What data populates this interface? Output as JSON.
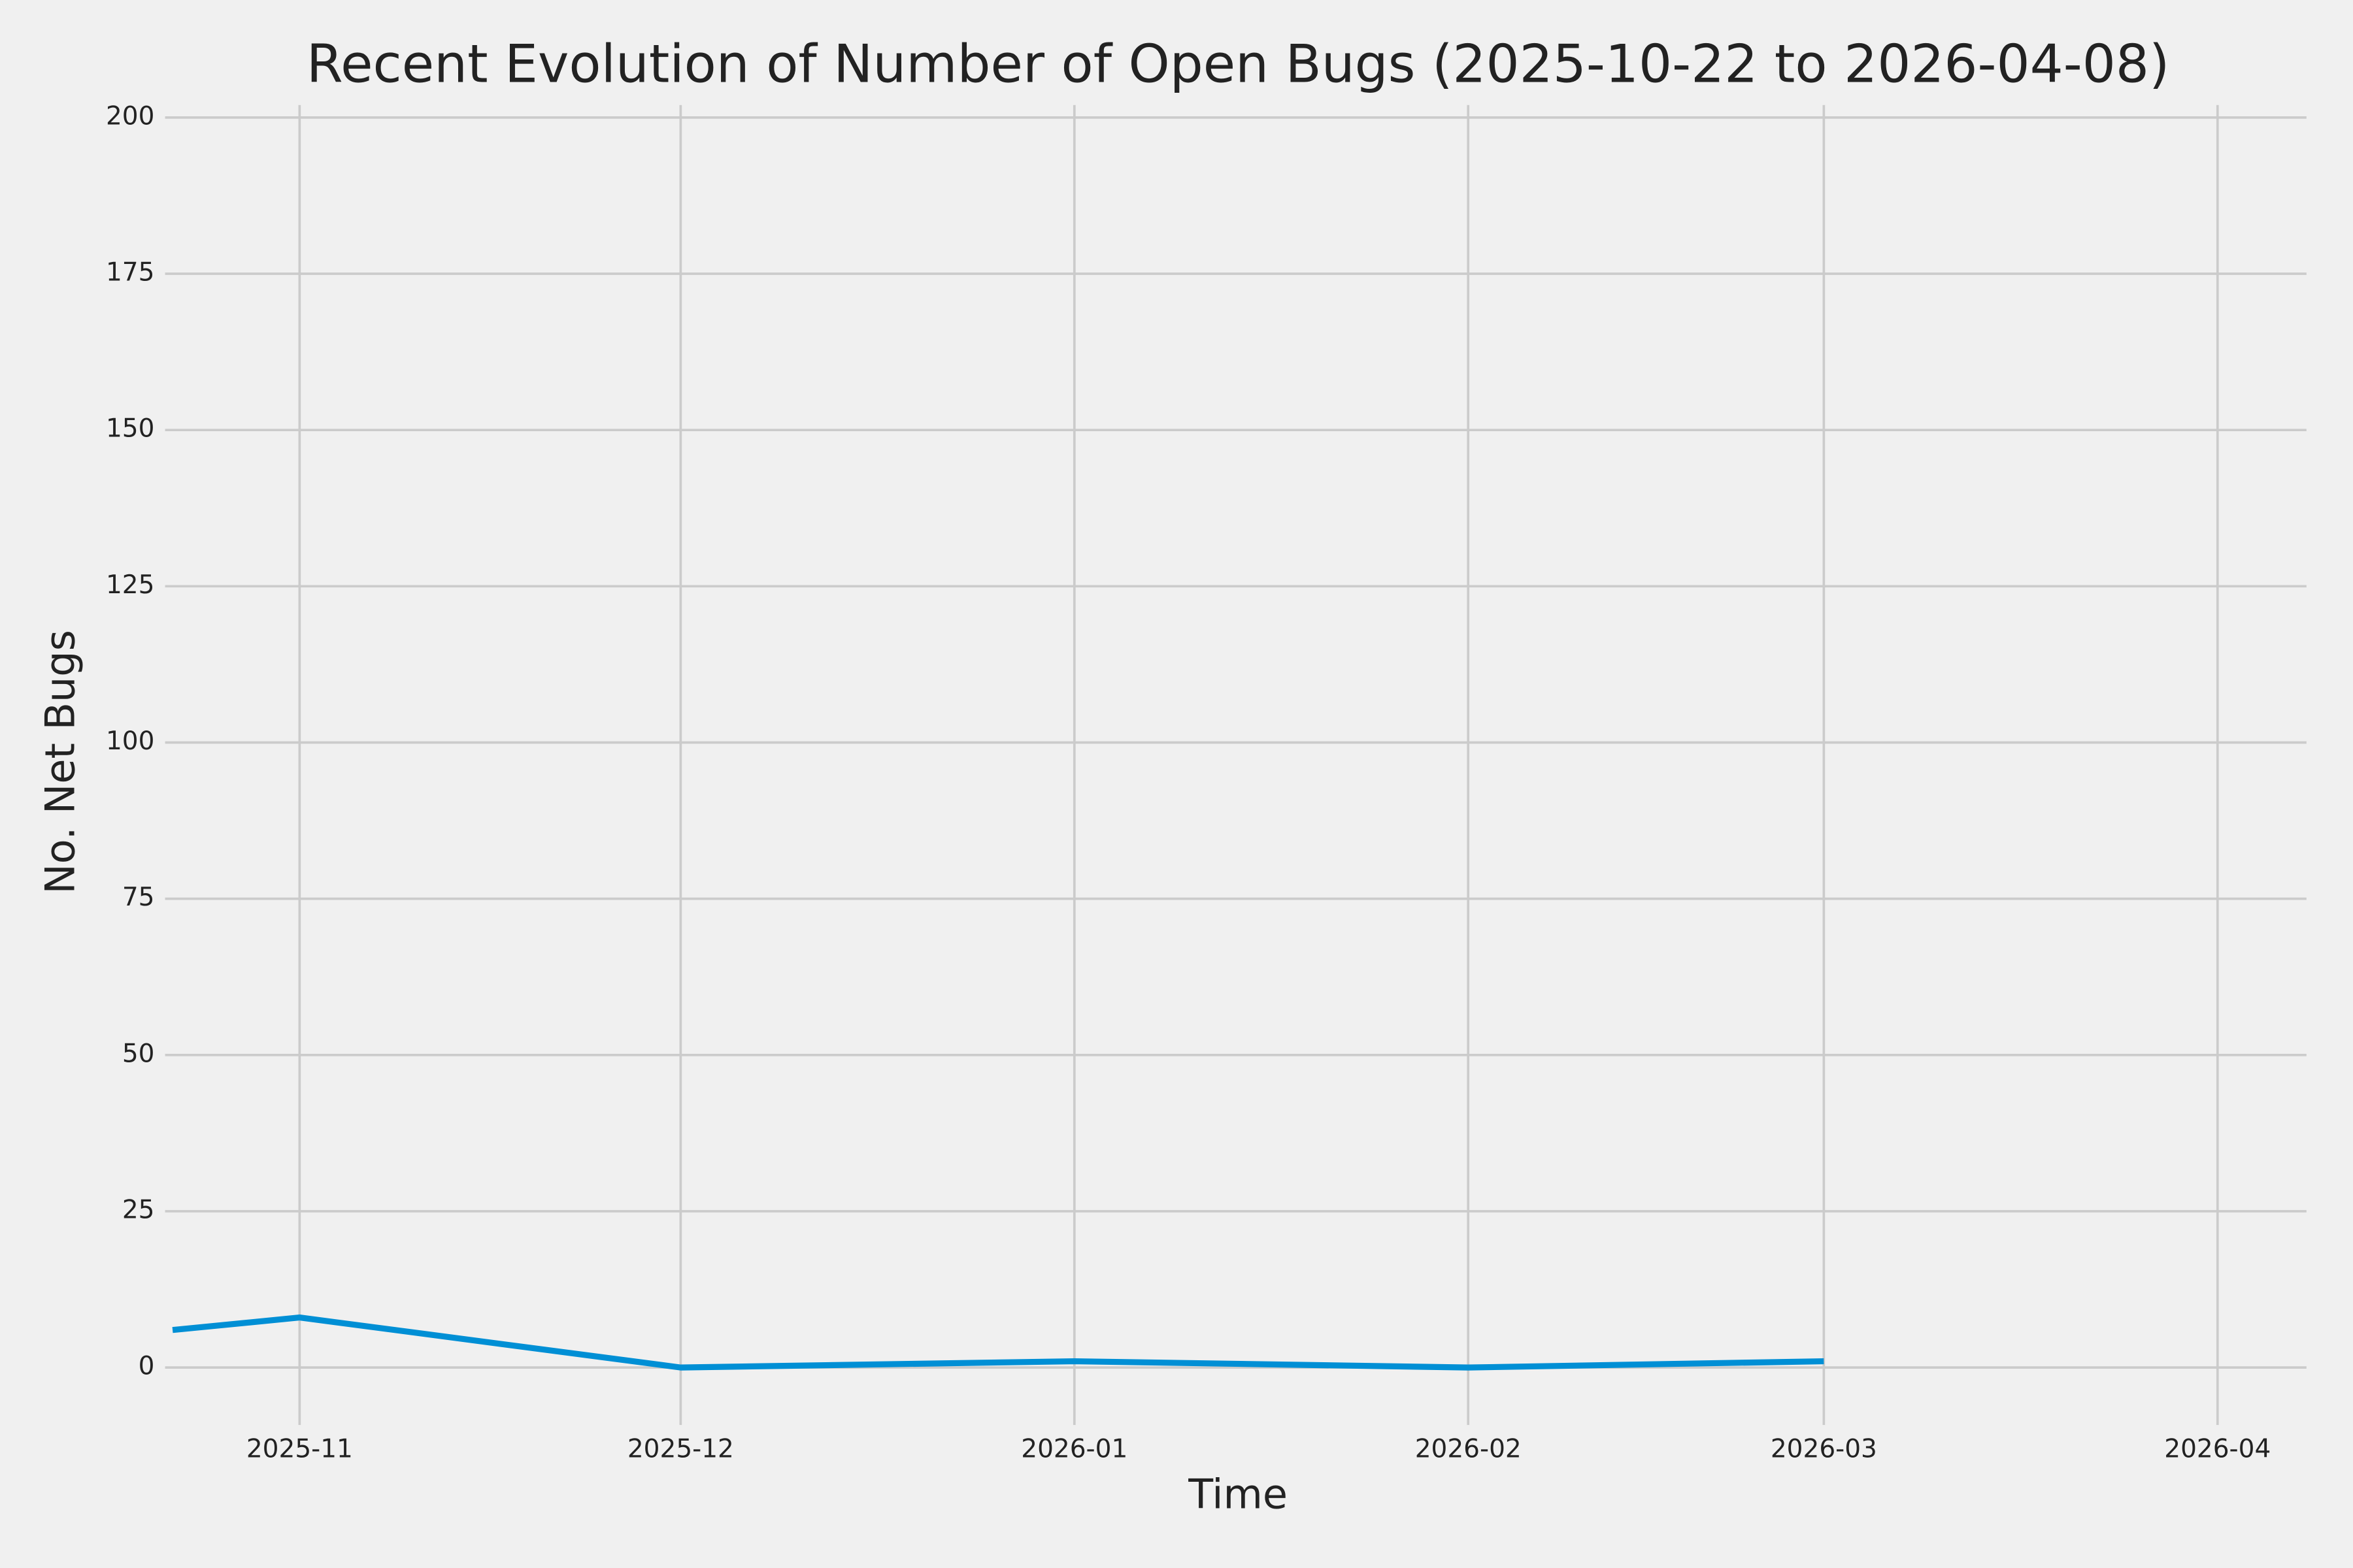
{
  "chart_data": {
    "type": "line",
    "title": "Recent Evolution of Number of Open Bugs (2025-10-22 to 2026-04-08)",
    "x_label": "Time",
    "y_label": "No. Net Bugs",
    "x": [
      "2025-10-22",
      "2025-11",
      "2025-12",
      "2026-01",
      "2026-02",
      "2026-03"
    ],
    "series": [
      {
        "name": "Open Bugs",
        "color": "#008fd5",
        "values": [
          6,
          8,
          0,
          1,
          0,
          1
        ]
      }
    ],
    "xlim": [
      "2025-10-22",
      "2026-04-08"
    ],
    "xticks": [
      "2025-11",
      "2025-12",
      "2026-01",
      "2026-02",
      "2026-03",
      "2026-04"
    ],
    "ylim": [
      -8,
      202
    ],
    "yticks": [
      0,
      25,
      50,
      75,
      100,
      125,
      150,
      175,
      200
    ],
    "grid": true,
    "background": "#f0f0f0"
  }
}
